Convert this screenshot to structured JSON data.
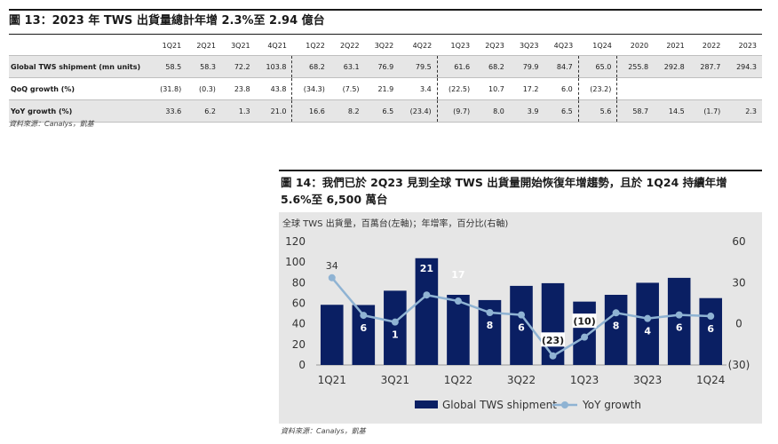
{
  "table_figure": {
    "title": "圖 13：2023 年 TWS 出貨量總計年增 2.3%至 2.94 億台",
    "columns": [
      "1Q21",
      "2Q21",
      "3Q21",
      "4Q21",
      "1Q22",
      "2Q22",
      "3Q22",
      "4Q22",
      "1Q23",
      "2Q23",
      "3Q23",
      "4Q23",
      "1Q24",
      "2020",
      "2021",
      "2022",
      "2023"
    ],
    "rows": [
      {
        "label": "Global TWS shipment (mn units)",
        "values": [
          "58.5",
          "58.3",
          "72.2",
          "103.8",
          "68.2",
          "63.1",
          "76.9",
          "79.5",
          "61.6",
          "68.2",
          "79.9",
          "84.7",
          "65.0",
          "255.8",
          "292.8",
          "287.7",
          "294.3"
        ]
      },
      {
        "label": "QoQ growth (%)",
        "values": [
          "(31.8)",
          "(0.3)",
          "23.8",
          "43.8",
          "(34.3)",
          "(7.5)",
          "21.9",
          "3.4",
          "(22.5)",
          "10.7",
          "17.2",
          "6.0",
          "(23.2)",
          "",
          "",
          "",
          ""
        ]
      },
      {
        "label": "YoY growth (%)",
        "values": [
          "33.6",
          "6.2",
          "1.3",
          "21.0",
          "16.6",
          "8.2",
          "6.5",
          "(23.4)",
          "(9.7)",
          "8.0",
          "3.9",
          "6.5",
          "5.6",
          "58.7",
          "14.5",
          "(1.7)",
          "2.3"
        ]
      }
    ],
    "source": "資料來源：Canalys，凱基"
  },
  "chart_figure": {
    "title_line1": "圖 14：我們已於 2Q23 見到全球 TWS 出貨量開始恢復年增趨勢，且於 1Q24 持續年增",
    "title_line2": "5.6%至 6,500 萬台",
    "subtitle": "全球 TWS 出貨量，百萬台(左軸)；年增率，百分比(右軸)",
    "source": "資料來源：Canalys，凱基",
    "colors": {
      "bar": "#0a1f63",
      "line": "#8fb3d3"
    }
  },
  "chart_data": {
    "type": "bar",
    "categories": [
      "1Q21",
      "2Q21",
      "3Q21",
      "4Q21",
      "1Q22",
      "2Q22",
      "3Q22",
      "4Q22",
      "1Q23",
      "2Q23",
      "3Q23",
      "4Q23",
      "1Q24"
    ],
    "xtick_labels": [
      "1Q21",
      "3Q21",
      "1Q22",
      "3Q22",
      "1Q23",
      "3Q23",
      "1Q24"
    ],
    "series": [
      {
        "name": "Global TWS shipment",
        "type": "bar",
        "axis": "left",
        "values": [
          58.5,
          58.3,
          72.2,
          103.8,
          68.2,
          63.1,
          76.9,
          79.5,
          61.6,
          68.2,
          79.9,
          84.7,
          65.0
        ]
      },
      {
        "name": "YoY growth",
        "type": "line",
        "axis": "right",
        "values": [
          33.6,
          6.2,
          1.3,
          21.0,
          16.6,
          8.2,
          6.5,
          -23.4,
          -9.7,
          8.0,
          3.9,
          6.5,
          5.6
        ],
        "labels": [
          "34",
          "6",
          "1",
          "21",
          "17",
          "8",
          "6",
          "(23)",
          "(10)",
          "8",
          "4",
          "6",
          "6"
        ]
      }
    ],
    "left_axis": {
      "ylim": [
        0,
        120
      ],
      "ticks": [
        "0",
        "20",
        "40",
        "60",
        "80",
        "100",
        "120"
      ]
    },
    "right_axis": {
      "ylim": [
        -30,
        60
      ],
      "ticks": [
        "(30)",
        "0",
        "30",
        "60"
      ]
    },
    "legend_position": "bottom-center",
    "grid": false
  }
}
